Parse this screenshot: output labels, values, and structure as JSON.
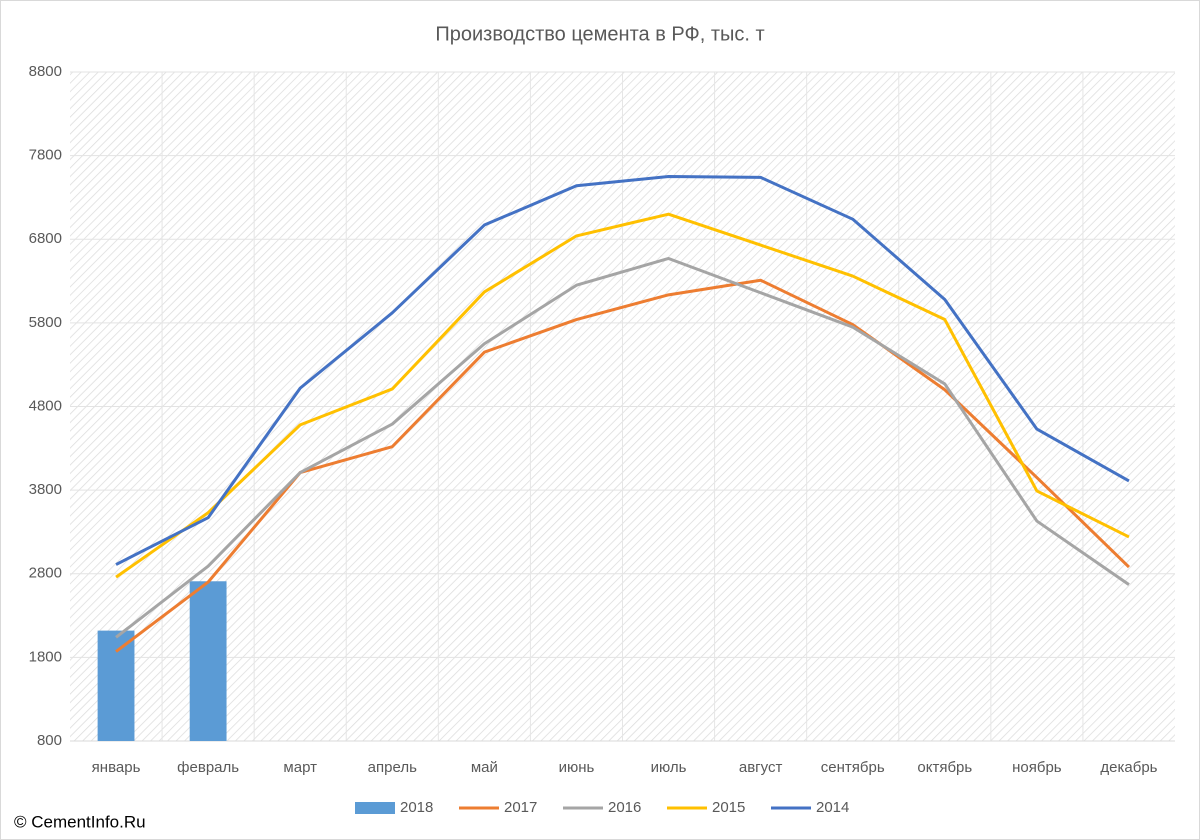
{
  "chart_data": {
    "type": "combo",
    "title": "Производство цемента в РФ, тыс. т",
    "categories": [
      "январь",
      "февраль",
      "март",
      "апрель",
      "май",
      "июнь",
      "июль",
      "август",
      "сентябрь",
      "октябрь",
      "ноябрь",
      "декабрь"
    ],
    "series": [
      {
        "name": "2018",
        "type": "bar",
        "color": "#5b9bd5",
        "values": [
          2120,
          2710,
          null,
          null,
          null,
          null,
          null,
          null,
          null,
          null,
          null,
          null
        ]
      },
      {
        "name": "2017",
        "type": "line",
        "color": "#ed7d31",
        "values": [
          1870,
          2700,
          4010,
          4320,
          5450,
          5840,
          6135,
          6310,
          5780,
          5000,
          3950,
          2880
        ]
      },
      {
        "name": "2016",
        "type": "line",
        "color": "#a5a5a5",
        "values": [
          2040,
          2890,
          4010,
          4590,
          5550,
          6250,
          6570,
          6160,
          5750,
          5070,
          3430,
          2670
        ]
      },
      {
        "name": "2015",
        "type": "line",
        "color": "#ffc000",
        "values": [
          2760,
          3530,
          4580,
          5010,
          6170,
          6840,
          7100,
          6730,
          6360,
          5840,
          3790,
          3240
        ]
      },
      {
        "name": "2014",
        "type": "line",
        "color": "#4472c4",
        "values": [
          2910,
          3470,
          5020,
          5920,
          6970,
          7440,
          7550,
          7540,
          7040,
          6080,
          4530,
          3910
        ]
      }
    ],
    "ylim": [
      800,
      8800
    ],
    "yticks": [
      800,
      1800,
      2800,
      3800,
      4800,
      5800,
      6800,
      7800,
      8800
    ],
    "grid": true,
    "legend": "bottom",
    "source": "© CementInfo.Ru"
  }
}
